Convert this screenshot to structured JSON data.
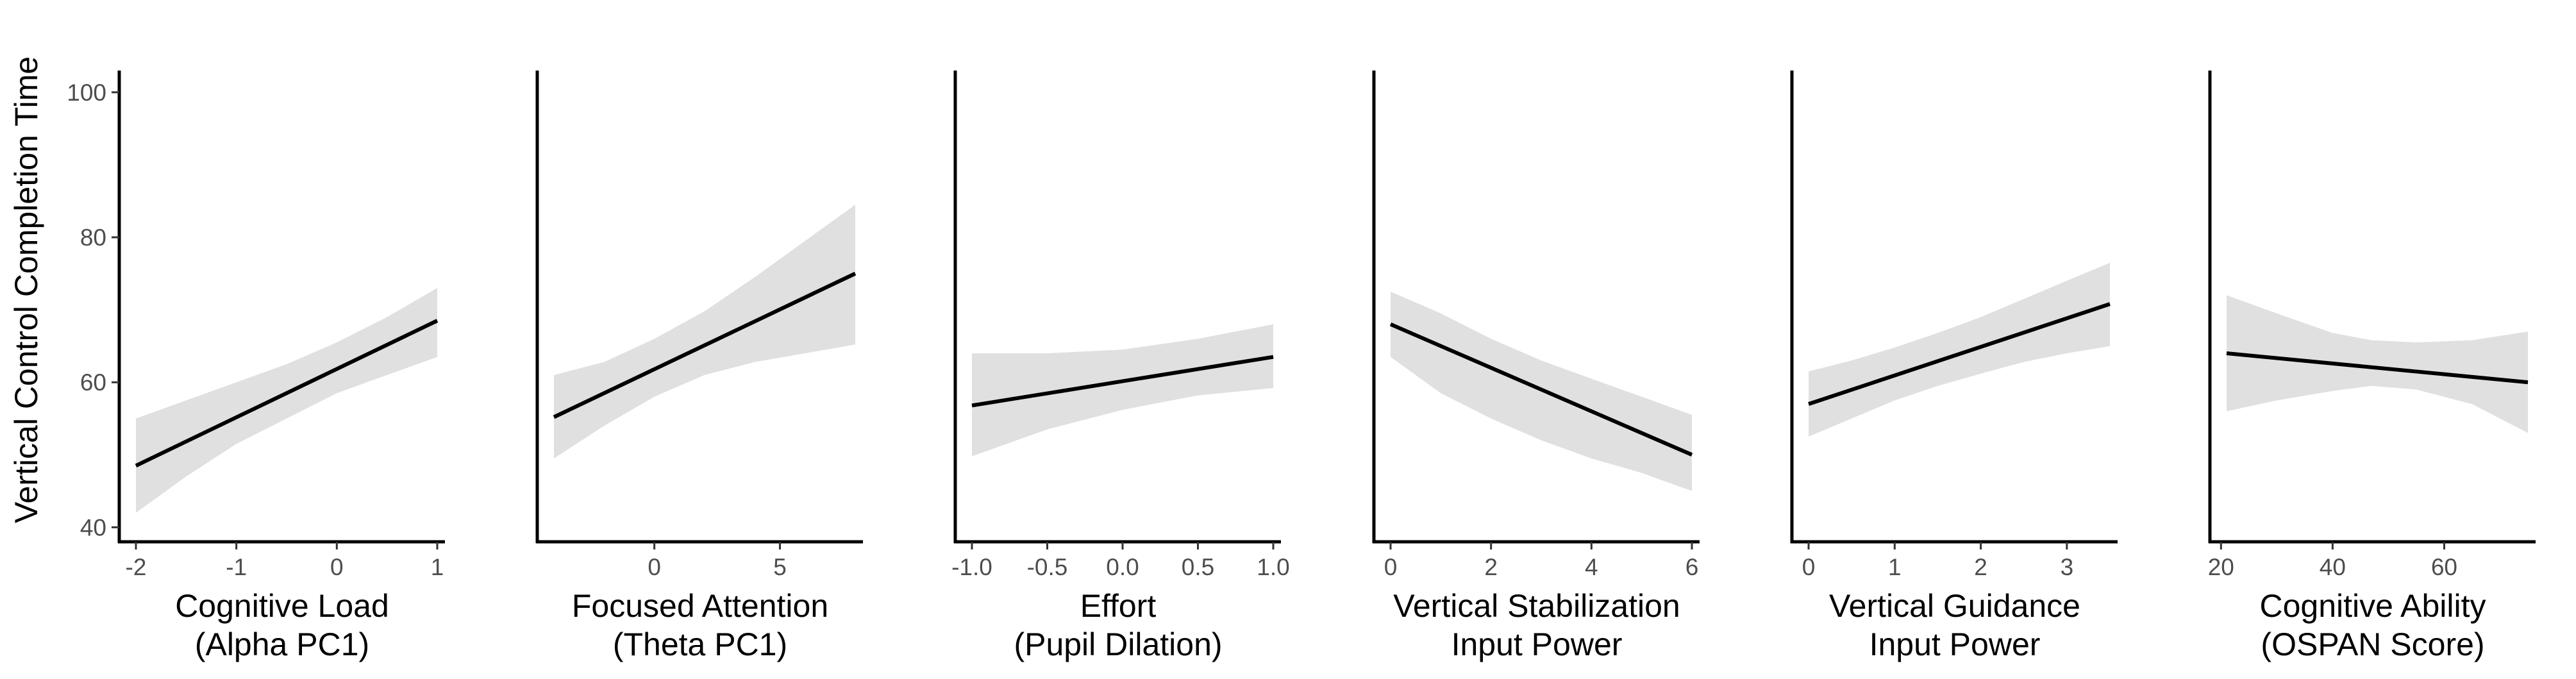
{
  "figure": {
    "ylabel": "Vertical Control Completion Time",
    "y_ticks": [
      "40",
      "60",
      "80",
      "100"
    ]
  },
  "chart_data": [
    {
      "type": "line",
      "xlabel": [
        "Cognitive Load",
        "(Alpha PC1)"
      ],
      "ylabel": "Vertical Control Completion Time",
      "xlim": [
        -2.0,
        1.0
      ],
      "ylim": [
        38,
        103
      ],
      "x_ticks": [
        -2,
        -1,
        0,
        1
      ],
      "x_tick_labels": [
        "-2",
        "-1",
        "0",
        "1"
      ],
      "line": {
        "x": [
          -2.0,
          1.0
        ],
        "y": [
          48.5,
          68.5
        ]
      },
      "ribbon": {
        "x": [
          -2.0,
          -1.5,
          -1.0,
          -0.5,
          0.0,
          0.5,
          1.0
        ],
        "lower": [
          42.0,
          47.0,
          51.5,
          55.0,
          58.5,
          61.0,
          63.5
        ],
        "upper": [
          55.0,
          57.5,
          60.0,
          62.5,
          65.5,
          69.0,
          73.0
        ]
      },
      "grid": false
    },
    {
      "type": "line",
      "xlabel": [
        "Focused Attention",
        "(Theta PC1)"
      ],
      "ylabel": "",
      "xlim": [
        -4.0,
        8.0
      ],
      "ylim": [
        38,
        103
      ],
      "x_ticks": [
        0,
        5
      ],
      "x_tick_labels": [
        "0",
        "5"
      ],
      "line": {
        "x": [
          -4.0,
          8.0
        ],
        "y": [
          55.2,
          75.0
        ]
      },
      "ribbon": {
        "x": [
          -4.0,
          -2.0,
          0.0,
          2.0,
          4.0,
          6.0,
          8.0
        ],
        "lower": [
          49.5,
          54.0,
          58.0,
          61.0,
          62.8,
          64.0,
          65.2
        ],
        "upper": [
          61.0,
          62.8,
          66.0,
          69.8,
          74.5,
          79.5,
          84.5
        ]
      },
      "grid": false
    },
    {
      "type": "line",
      "xlabel": [
        "Effort",
        "(Pupil Dilation)"
      ],
      "ylabel": "",
      "xlim": [
        -1.0,
        1.0
      ],
      "ylim": [
        38,
        103
      ],
      "x_ticks": [
        -1.0,
        -0.5,
        0.0,
        0.5,
        1.0
      ],
      "x_tick_labels": [
        "-1.0",
        "-0.5",
        "0.0",
        "0.5",
        "1.0"
      ],
      "line": {
        "x": [
          -1.0,
          1.0
        ],
        "y": [
          56.8,
          63.5
        ]
      },
      "ribbon": {
        "x": [
          -1.0,
          -0.5,
          0.0,
          0.5,
          1.0
        ],
        "lower": [
          49.8,
          53.5,
          56.2,
          58.2,
          59.2
        ],
        "upper": [
          64.0,
          64.0,
          64.5,
          66.0,
          68.0
        ]
      },
      "grid": false
    },
    {
      "type": "line",
      "xlabel": [
        "Vertical Stabilization",
        "Input Power"
      ],
      "ylabel": "",
      "xlim": [
        0.0,
        6.0
      ],
      "ylim": [
        38,
        103
      ],
      "x_ticks": [
        0,
        2,
        4,
        6
      ],
      "x_tick_labels": [
        "0",
        "2",
        "4",
        "6"
      ],
      "line": {
        "x": [
          0.0,
          6.0
        ],
        "y": [
          68.0,
          50.0
        ]
      },
      "ribbon": {
        "x": [
          0.0,
          1.0,
          2.0,
          3.0,
          4.0,
          5.0,
          6.0
        ],
        "lower": [
          63.5,
          58.5,
          55.0,
          52.0,
          49.5,
          47.5,
          45.0
        ],
        "upper": [
          72.5,
          69.5,
          66.0,
          63.0,
          60.5,
          58.0,
          55.5
        ]
      },
      "grid": false
    },
    {
      "type": "line",
      "xlabel": [
        "Vertical Guidance",
        "Input Power"
      ],
      "ylabel": "",
      "xlim": [
        0.0,
        3.5
      ],
      "ylim": [
        38,
        103
      ],
      "x_ticks": [
        0,
        1,
        2,
        3
      ],
      "x_tick_labels": [
        "0",
        "1",
        "2",
        "3"
      ],
      "line": {
        "x": [
          0.0,
          3.5
        ],
        "y": [
          57.0,
          70.8
        ]
      },
      "ribbon": {
        "x": [
          0.0,
          0.5,
          1.0,
          1.5,
          2.0,
          2.5,
          3.0,
          3.5
        ],
        "lower": [
          52.5,
          55.0,
          57.5,
          59.5,
          61.2,
          62.8,
          64.0,
          65.0
        ],
        "upper": [
          61.5,
          63.0,
          64.8,
          66.8,
          69.0,
          71.5,
          74.0,
          76.5
        ]
      },
      "grid": false
    },
    {
      "type": "line",
      "xlabel": [
        "Cognitive Ability",
        "(OSPAN Score)"
      ],
      "ylabel": "",
      "xlim": [
        21.0,
        75.0
      ],
      "ylim": [
        38,
        103
      ],
      "x_ticks": [
        20,
        40,
        60
      ],
      "x_tick_labels": [
        "20",
        "40",
        "60"
      ],
      "line": {
        "x": [
          21.0,
          75.0
        ],
        "y": [
          64.0,
          60.0
        ]
      },
      "ribbon": {
        "x": [
          21.0,
          30.0,
          40.0,
          47.0,
          55.0,
          65.0,
          75.0
        ],
        "lower": [
          56.0,
          57.5,
          58.8,
          59.5,
          59.0,
          57.0,
          53.0
        ],
        "upper": [
          72.0,
          69.5,
          66.8,
          65.8,
          65.5,
          65.8,
          67.0
        ]
      },
      "grid": false
    }
  ]
}
